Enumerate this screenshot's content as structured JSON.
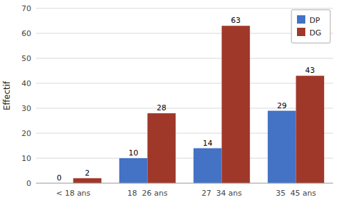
{
  "chart_data": {
    "type": "bar",
    "categories": [
      "< 18 ans",
      "18  26 ans",
      "27  34 ans",
      "35  45 ans"
    ],
    "series": [
      {
        "name": "DP",
        "color": "#4472C4",
        "values": [
          0,
          10,
          14,
          29
        ]
      },
      {
        "name": "DG",
        "color": "#A0382A",
        "values": [
          2,
          28,
          63,
          43
        ]
      }
    ],
    "y_label": "Effectif",
    "ylim": [
      0,
      70
    ],
    "yticks": [
      0,
      10,
      20,
      30,
      40,
      50,
      60,
      70
    ],
    "grid": true,
    "legend": "upper right",
    "data_labels": true
  }
}
